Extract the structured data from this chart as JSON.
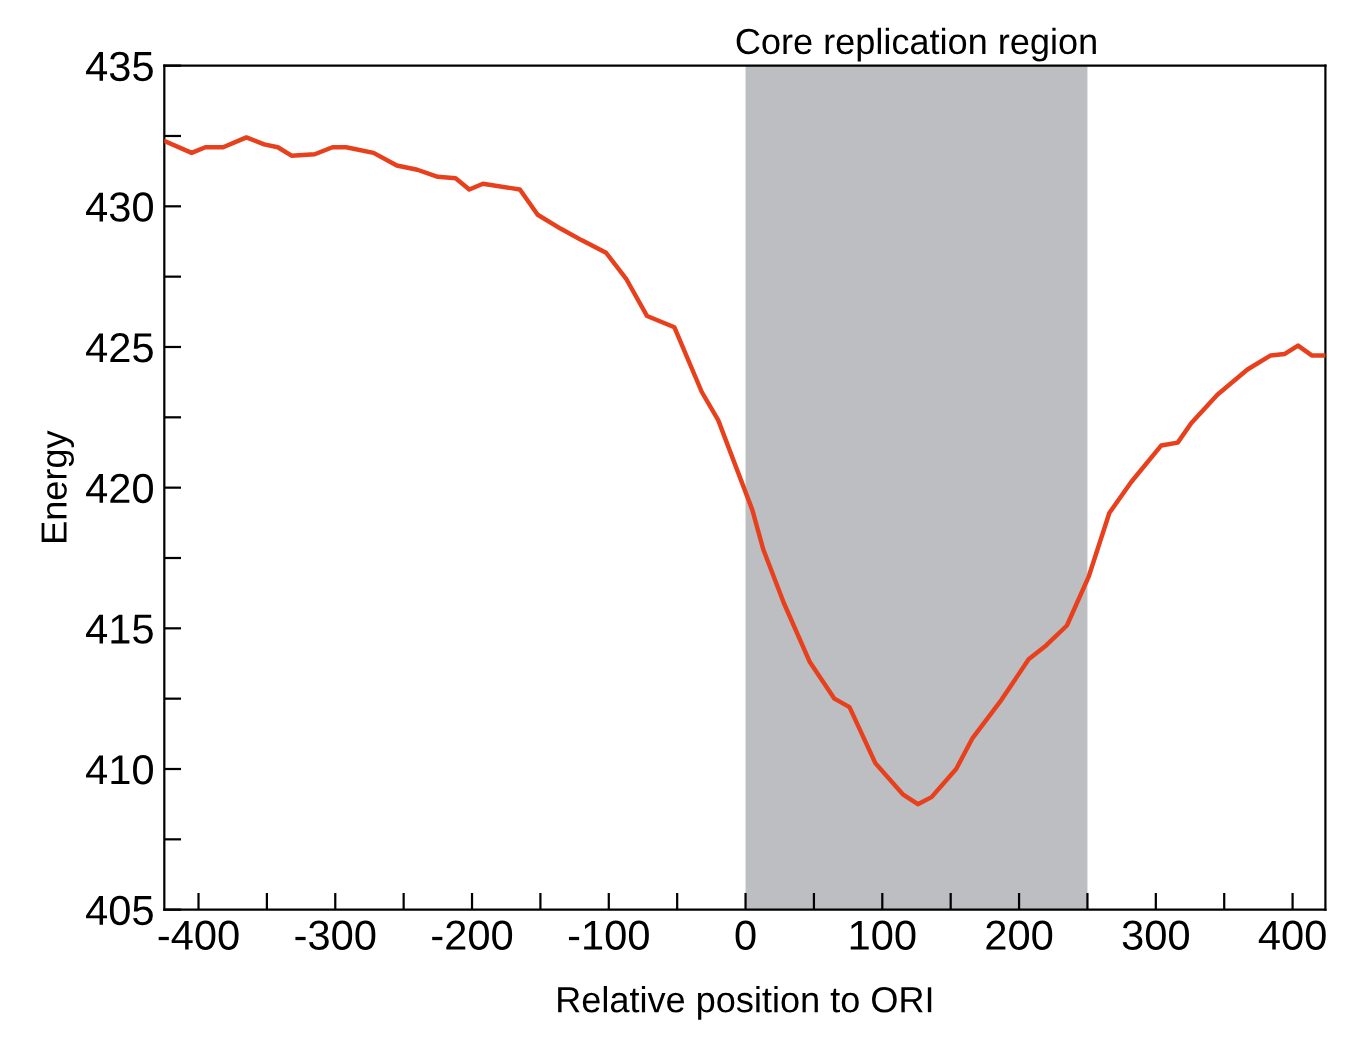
{
  "chart_data": {
    "type": "line",
    "xlabel": "Relative position to ORI",
    "ylabel": "Energy",
    "series": [
      {
        "color": "#e8401c",
        "x": [
          -424,
          -405,
          -395,
          -382,
          -365,
          -352,
          -342,
          -332,
          -315,
          -302,
          -292,
          -272,
          -255,
          -240,
          -225,
          -212,
          -202,
          -192,
          -165,
          -152,
          -135,
          -120,
          -102,
          -87,
          -72,
          -52,
          -32,
          -20,
          5,
          13,
          28,
          47,
          65,
          76,
          95,
          115,
          126,
          136,
          154,
          166,
          187,
          207,
          220,
          235,
          251,
          266,
          282,
          304,
          316,
          326,
          345,
          367,
          384,
          394,
          404,
          414,
          423
        ],
        "values": [
          432.3,
          431.9,
          432.1,
          432.1,
          432.45,
          432.2,
          432.1,
          431.8,
          431.85,
          432.1,
          432.1,
          431.9,
          431.45,
          431.3,
          431.05,
          431.0,
          430.6,
          430.8,
          430.6,
          429.7,
          429.2,
          428.8,
          428.35,
          427.4,
          426.1,
          425.7,
          423.4,
          422.4,
          419.2,
          417.8,
          415.9,
          413.8,
          412.5,
          412.2,
          410.2,
          409.1,
          408.75,
          409.0,
          410.0,
          411.1,
          412.45,
          413.9,
          414.4,
          415.1,
          416.85,
          419.1,
          420.2,
          421.5,
          421.6,
          422.3,
          423.3,
          424.2,
          424.7,
          424.75,
          425.05,
          424.7,
          424.7
        ]
      }
    ],
    "bands": [
      {
        "axis": "x",
        "from": 0,
        "to": 250,
        "label": "Core replication region",
        "color": "#bcbec2"
      }
    ],
    "xlim": [
      -425,
      424
    ],
    "ylim": [
      405,
      435
    ],
    "xticks": [
      -400,
      {
        "value": -350,
        "label": null
      },
      -300,
      {
        "value": -250,
        "label": null
      },
      -200,
      {
        "value": -150,
        "label": null
      },
      -100,
      {
        "value": -50,
        "label": null
      },
      0,
      {
        "value": 50,
        "label": null
      },
      100,
      {
        "value": 150,
        "label": null
      },
      200,
      {
        "value": 250,
        "label": null
      },
      300,
      {
        "value": 350,
        "label": null
      },
      400
    ],
    "yticks": [
      405,
      {
        "value": 407.5,
        "label": null
      },
      410,
      {
        "value": 412.5,
        "label": null
      },
      415,
      {
        "value": 417.5,
        "label": null
      },
      420,
      {
        "value": 422.5,
        "label": null
      },
      425,
      {
        "value": 427.5,
        "label": null
      },
      430,
      {
        "value": 432.5,
        "label": null
      },
      435
    ],
    "grid": false,
    "marker": "none",
    "line_style": "solid"
  }
}
